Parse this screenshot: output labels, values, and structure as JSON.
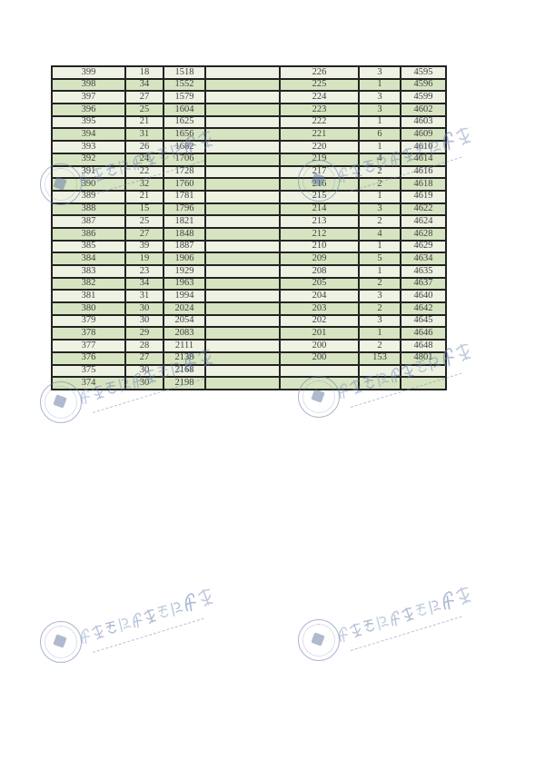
{
  "page": {
    "background": "#ffffff"
  },
  "table": {
    "column_roles": [
      "score",
      "count",
      "cumulative",
      "spacer",
      "score",
      "count",
      "cumulative"
    ],
    "left_rows": [
      [
        399,
        18,
        1518
      ],
      [
        398,
        34,
        1552
      ],
      [
        397,
        27,
        1579
      ],
      [
        396,
        25,
        1604
      ],
      [
        395,
        21,
        1625
      ],
      [
        394,
        31,
        1656
      ],
      [
        393,
        26,
        1682
      ],
      [
        392,
        24,
        1706
      ],
      [
        391,
        22,
        1728
      ],
      [
        390,
        32,
        1760
      ],
      [
        389,
        21,
        1781
      ],
      [
        388,
        15,
        1796
      ],
      [
        387,
        25,
        1821
      ],
      [
        386,
        27,
        1848
      ],
      [
        385,
        39,
        1887
      ],
      [
        384,
        19,
        1906
      ],
      [
        383,
        23,
        1929
      ],
      [
        382,
        34,
        1963
      ],
      [
        381,
        31,
        1994
      ],
      [
        380,
        30,
        2024
      ],
      [
        379,
        30,
        2054
      ],
      [
        378,
        29,
        2083
      ],
      [
        377,
        28,
        2111
      ],
      [
        376,
        27,
        2138
      ],
      [
        375,
        30,
        2168
      ],
      [
        374,
        30,
        2198
      ]
    ],
    "right_rows": [
      [
        226,
        3,
        4595
      ],
      [
        225,
        1,
        4596
      ],
      [
        224,
        3,
        4599
      ],
      [
        223,
        3,
        4602
      ],
      [
        222,
        1,
        4603
      ],
      [
        221,
        6,
        4609
      ],
      [
        220,
        1,
        4610
      ],
      [
        219,
        4,
        4614
      ],
      [
        217,
        2,
        4616
      ],
      [
        216,
        2,
        4618
      ],
      [
        215,
        1,
        4619
      ],
      [
        214,
        3,
        4622
      ],
      [
        213,
        2,
        4624
      ],
      [
        212,
        4,
        4628
      ],
      [
        210,
        1,
        4629
      ],
      [
        209,
        5,
        4634
      ],
      [
        208,
        1,
        4635
      ],
      [
        205,
        2,
        4637
      ],
      [
        204,
        3,
        4640
      ],
      [
        203,
        2,
        4642
      ],
      [
        202,
        3,
        4645
      ],
      [
        201,
        1,
        4646
      ],
      [
        200,
        2,
        4648
      ],
      [
        200,
        153,
        4801
      ],
      [
        "",
        "",
        ""
      ],
      [
        "",
        "",
        ""
      ]
    ],
    "style": {
      "row_pale": "#eef2e3",
      "row_green": "#d7e4c1",
      "border_color": "#232323",
      "text_color": "#3f3f3f"
    }
  },
  "watermark": {
    "text_cn": "河北机电职业技术学院",
    "color": "#6f86b4",
    "instances": 6
  }
}
